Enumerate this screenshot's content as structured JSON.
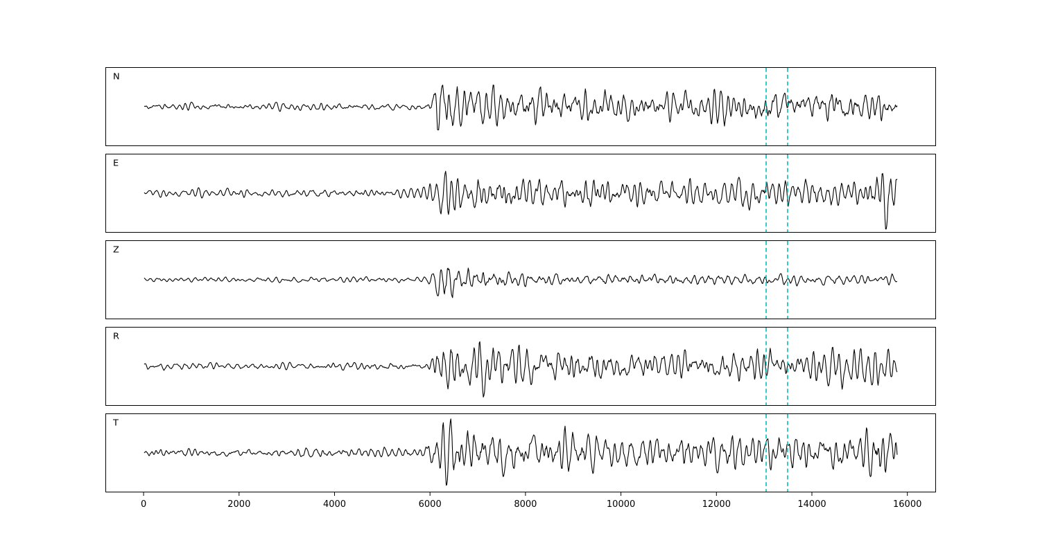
{
  "figure": {
    "background": "#ffffff",
    "title": ""
  },
  "chart_data": {
    "type": "line",
    "title": "",
    "xlabel": "",
    "ylabel": "",
    "legend": "none",
    "grid": false,
    "x_range": [
      -800,
      16600
    ],
    "x_data_span": [
      0,
      15800
    ],
    "x_ticks": [
      0,
      2000,
      4000,
      6000,
      8000,
      10000,
      12000,
      14000,
      16000
    ],
    "trace_color": "#000000",
    "vlines": {
      "positions": [
        13050,
        13500
      ],
      "color": "#00bfbf",
      "style": "dashed",
      "note": "two vertical dashed cyan marker lines drawn across every panel"
    },
    "notes": "Five stacked seismogram component traces sharing one x-axis (samples). Quiet background noise until ~6000, strong arrival burst at ~6100-6600, extended coda afterwards. E and T components show a second large burst near ~15300-15700; Z component coda is much weaker.",
    "series": [
      {
        "label": "N",
        "seed": 101,
        "envelope": [
          [
            0,
            0.12
          ],
          [
            5900,
            0.13
          ],
          [
            6020,
            0.25
          ],
          [
            6120,
            1.0
          ],
          [
            6500,
            0.9
          ],
          [
            7000,
            0.75
          ],
          [
            7800,
            0.6
          ],
          [
            8300,
            0.7
          ],
          [
            9000,
            0.55
          ],
          [
            9400,
            0.7
          ],
          [
            10200,
            0.5
          ],
          [
            11500,
            0.5
          ],
          [
            12500,
            0.55
          ],
          [
            13200,
            0.6
          ],
          [
            14000,
            0.55
          ],
          [
            14600,
            0.65
          ],
          [
            15300,
            0.55
          ],
          [
            15800,
            0.5
          ]
        ]
      },
      {
        "label": "E",
        "seed": 202,
        "envelope": [
          [
            0,
            0.14
          ],
          [
            5700,
            0.16
          ],
          [
            6050,
            0.35
          ],
          [
            6200,
            0.8
          ],
          [
            6800,
            0.75
          ],
          [
            7500,
            0.7
          ],
          [
            8200,
            0.6
          ],
          [
            9000,
            0.55
          ],
          [
            9400,
            0.65
          ],
          [
            10000,
            0.5
          ],
          [
            11000,
            0.55
          ],
          [
            12000,
            0.5
          ],
          [
            13000,
            0.6
          ],
          [
            13600,
            0.55
          ],
          [
            14300,
            0.5
          ],
          [
            15000,
            0.45
          ],
          [
            15250,
            0.6
          ],
          [
            15450,
            1.0
          ],
          [
            15650,
            0.9
          ],
          [
            15800,
            0.95
          ]
        ]
      },
      {
        "label": "Z",
        "seed": 303,
        "envelope": [
          [
            0,
            0.08
          ],
          [
            5900,
            0.1
          ],
          [
            6080,
            0.3
          ],
          [
            6220,
            1.0
          ],
          [
            6450,
            0.95
          ],
          [
            6700,
            0.5
          ],
          [
            7100,
            0.4
          ],
          [
            7600,
            0.3
          ],
          [
            8200,
            0.28
          ],
          [
            9000,
            0.22
          ],
          [
            9800,
            0.25
          ],
          [
            10800,
            0.2
          ],
          [
            12000,
            0.22
          ],
          [
            13000,
            0.2
          ],
          [
            14000,
            0.18
          ],
          [
            15000,
            0.17
          ],
          [
            15800,
            0.15
          ]
        ]
      },
      {
        "label": "R",
        "seed": 404,
        "envelope": [
          [
            0,
            0.12
          ],
          [
            5900,
            0.14
          ],
          [
            6050,
            0.35
          ],
          [
            6150,
            1.0
          ],
          [
            6600,
            0.95
          ],
          [
            7200,
            0.85
          ],
          [
            7900,
            0.7
          ],
          [
            8600,
            0.6
          ],
          [
            9300,
            0.65
          ],
          [
            10000,
            0.55
          ],
          [
            11000,
            0.5
          ],
          [
            12000,
            0.55
          ],
          [
            13000,
            0.6
          ],
          [
            13800,
            0.55
          ],
          [
            14500,
            0.6
          ],
          [
            15200,
            0.7
          ],
          [
            15500,
            0.8
          ],
          [
            15800,
            0.55
          ]
        ]
      },
      {
        "label": "T",
        "seed": 505,
        "envelope": [
          [
            0,
            0.15
          ],
          [
            5700,
            0.18
          ],
          [
            6100,
            0.5
          ],
          [
            6250,
            0.95
          ],
          [
            6900,
            0.9
          ],
          [
            7500,
            0.85
          ],
          [
            8200,
            0.7
          ],
          [
            9000,
            0.75
          ],
          [
            9700,
            0.6
          ],
          [
            10500,
            0.65
          ],
          [
            11500,
            0.6
          ],
          [
            12500,
            0.6
          ],
          [
            13300,
            0.65
          ],
          [
            14200,
            0.55
          ],
          [
            15000,
            0.6
          ],
          [
            15350,
            1.0
          ],
          [
            15600,
            0.9
          ],
          [
            15800,
            0.8
          ]
        ]
      }
    ]
  }
}
